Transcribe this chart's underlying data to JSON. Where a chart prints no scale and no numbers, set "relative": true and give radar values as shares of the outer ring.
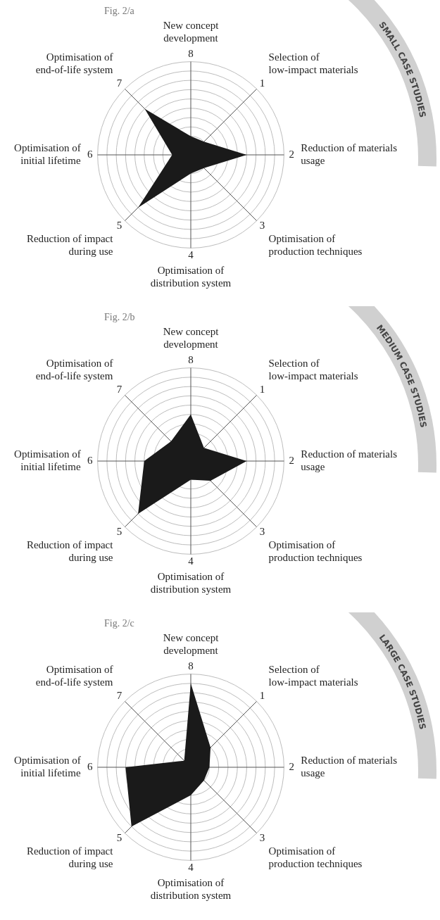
{
  "chart_data": [
    {
      "type": "radar",
      "title": "Fig. 2/a",
      "subtitle": "SMALL CASE STUDIES",
      "relative": true,
      "grid": true,
      "categories": [
        "New concept development",
        "Selection of low-impact materials",
        "Reduction of materials usage",
        "Optimisation of production techniques",
        "Optimisation of distribution system",
        "Reduction of impact during use",
        "Optimisation of initial lifetime",
        "Optimisation of end-of-life system"
      ],
      "annotations": [
        "8",
        "1",
        "2",
        "3",
        "4",
        "5",
        "6",
        "7"
      ],
      "series": [
        {
          "color": "#1a1a1a",
          "values": [
            0.2,
            0.2,
            0.6,
            0.2,
            0.2,
            0.8,
            0.2,
            0.7
          ]
        }
      ]
    },
    {
      "type": "radar",
      "title": "Fig. 2/b",
      "subtitle": "MEDIUM CASE STUDIES",
      "relative": true,
      "grid": true,
      "categories": [
        "New concept development",
        "Selection of low-impact materials",
        "Reduction of materials usage",
        "Optimisation of production techniques",
        "Optimisation of distribution system",
        "Reduction of impact during use",
        "Optimisation of initial lifetime",
        "Optimisation of end-of-life system"
      ],
      "annotations": [
        "8",
        "1",
        "2",
        "3",
        "4",
        "5",
        "6",
        "7"
      ],
      "series": [
        {
          "color": "#1a1a1a",
          "values": [
            0.5,
            0.2,
            0.6,
            0.3,
            0.2,
            0.8,
            0.5,
            0.3
          ]
        }
      ]
    },
    {
      "type": "radar",
      "title": "Fig. 2/c",
      "subtitle": "LARGE CASE STUDIES",
      "relative": true,
      "grid": true,
      "categories": [
        "New concept development",
        "Selection of low-impact materials",
        "Reduction of materials usage",
        "Optimisation of production techniques",
        "Optimisation of distribution system",
        "Reduction of impact during use",
        "Optimisation of initial lifetime",
        "Optimisation of end-of-life system"
      ],
      "annotations": [
        "8",
        "1",
        "2",
        "3",
        "4",
        "5",
        "6",
        "7"
      ],
      "series": [
        {
          "color": "#1a1a1a",
          "values": [
            0.9,
            0.3,
            0.2,
            0.2,
            0.3,
            0.9,
            0.7,
            0.1
          ]
        }
      ]
    }
  ]
}
